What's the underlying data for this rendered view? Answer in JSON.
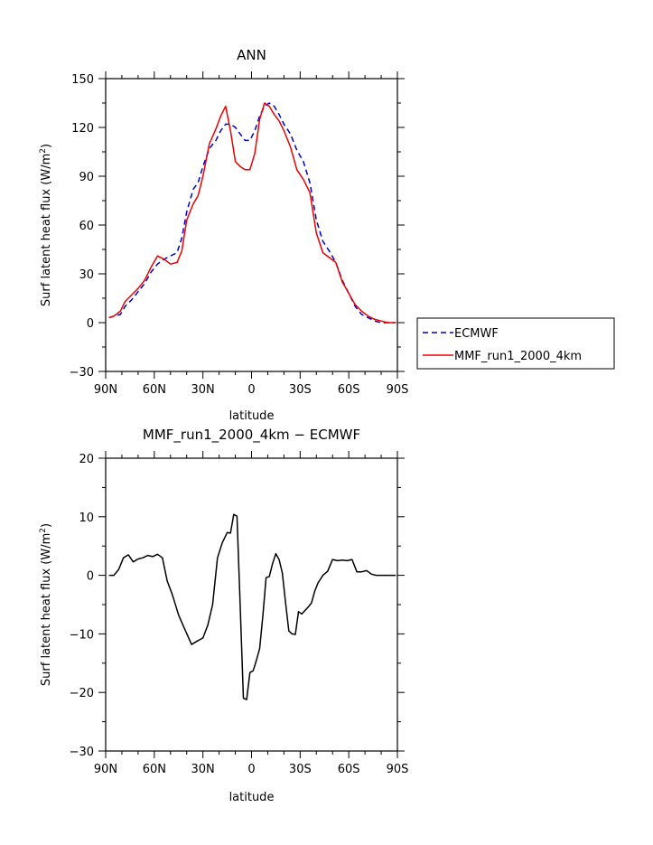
{
  "chart_data": [
    {
      "type": "line",
      "title": "ANN",
      "xlabel": "latitude",
      "ylabel": "Surf latent heat flux (W/m",
      "ylabel_superscript": "2",
      "ylabel_suffix": ")",
      "xlim": [
        90,
        -90
      ],
      "ylim": [
        -30,
        150
      ],
      "x_ticks": [
        90,
        60,
        30,
        0,
        -30,
        -60,
        -90
      ],
      "x_tick_labels": [
        "90N",
        "60N",
        "30N",
        "0",
        "30S",
        "60S",
        "90S"
      ],
      "y_ticks": [
        -30,
        0,
        30,
        60,
        90,
        120,
        150
      ],
      "y_tick_labels": [
        "−30",
        "0",
        "30",
        "60",
        "90",
        "120",
        "150"
      ],
      "legend": {
        "placement": "right-outside",
        "entries": [
          "ECMWF",
          "MMF_run1_2000_4km"
        ]
      },
      "series": [
        {
          "name": "ECMWF",
          "color": "#0000cc",
          "dash": "dashed",
          "x": [
            88,
            85,
            81,
            78,
            74,
            70,
            66,
            62,
            58,
            54,
            50,
            46,
            43,
            40,
            36,
            33,
            30,
            26,
            22,
            19,
            16,
            13,
            10,
            7,
            4,
            1,
            -2,
            -5,
            -8,
            -11,
            -14,
            -17,
            -20,
            -24,
            -28,
            -32,
            -36,
            -40,
            -44,
            -48,
            -52,
            -56,
            -60,
            -64,
            -68,
            -72,
            -76,
            -80,
            -84,
            -89
          ],
          "y": [
            3,
            4,
            5,
            10,
            14,
            19,
            24,
            31,
            36,
            39,
            41,
            43,
            52,
            68,
            82,
            86,
            96,
            107,
            112,
            118,
            122,
            122,
            120,
            116,
            112,
            112,
            118,
            127,
            133,
            135,
            133,
            128,
            122,
            116,
            106,
            99,
            86,
            63,
            50,
            44,
            37,
            26,
            18,
            10,
            5,
            3,
            1,
            0,
            0,
            0
          ]
        },
        {
          "name": "MMF_run1_2000_4km",
          "color": "#ee0000",
          "dash": "solid",
          "x": [
            88,
            85,
            81,
            78,
            74,
            70,
            66,
            62,
            58,
            54,
            50,
            46,
            43,
            40,
            36,
            33,
            30,
            26,
            22,
            19,
            16,
            13,
            10,
            7,
            4,
            1,
            -2,
            -5,
            -8,
            -11,
            -14,
            -17,
            -20,
            -24,
            -28,
            -32,
            -36,
            -40,
            -44,
            -48,
            -52,
            -56,
            -60,
            -64,
            -68,
            -72,
            -76,
            -80,
            -84,
            -89
          ],
          "y": [
            3,
            4,
            7,
            13,
            17,
            21,
            26,
            34,
            41,
            39,
            36,
            37,
            44,
            63,
            73,
            78,
            90,
            110,
            119,
            127,
            133,
            118,
            99,
            96,
            94,
            94,
            104,
            125,
            135,
            133,
            128,
            124,
            118,
            108,
            94,
            88,
            80,
            55,
            43,
            40,
            37,
            25,
            18,
            11,
            7,
            4,
            2,
            1,
            0,
            0
          ]
        }
      ]
    },
    {
      "type": "line",
      "title": "MMF_run1_2000_4km − ECMWF",
      "xlabel": "latitude",
      "ylabel": "Surf latent heat flux (W/m",
      "ylabel_superscript": "2",
      "ylabel_suffix": ")",
      "xlim": [
        90,
        -90
      ],
      "ylim": [
        -30,
        20
      ],
      "x_ticks": [
        90,
        60,
        30,
        0,
        -30,
        -60,
        -90
      ],
      "x_tick_labels": [
        "90N",
        "60N",
        "30N",
        "0",
        "30S",
        "60S",
        "90S"
      ],
      "y_ticks": [
        -30,
        -20,
        -10,
        0,
        10,
        20
      ],
      "y_tick_labels": [
        "−30",
        "−20",
        "−10",
        "0",
        "10",
        "20"
      ],
      "series": [
        {
          "name": "MMF_run1_2000_4km − ECMWF",
          "color": "#000000",
          "dash": "solid",
          "x": [
            88,
            85,
            82,
            79,
            76,
            73,
            70,
            67,
            64,
            61,
            58,
            55,
            52,
            49,
            45,
            41,
            37,
            34,
            30,
            27,
            24,
            21,
            18,
            15,
            13,
            11,
            9,
            7,
            5,
            3,
            1,
            -1,
            -3,
            -5,
            -7,
            -9,
            -11,
            -13,
            -15,
            -17,
            -19,
            -21,
            -23,
            -25,
            -27,
            -29,
            -31,
            -33,
            -35,
            -37,
            -39,
            -41,
            -44,
            -47,
            -50,
            -53,
            -56,
            -59,
            -62,
            -65,
            -68,
            -71,
            -74,
            -77,
            -80,
            -83,
            -86,
            -89
          ],
          "y": [
            0,
            0,
            1,
            3,
            3.5,
            2.3,
            2.8,
            3,
            3.4,
            3.2,
            3.6,
            3,
            -1,
            -3.2,
            -6.8,
            -9.3,
            -11.8,
            -11.3,
            -10.7,
            -8.5,
            -5,
            3,
            5.6,
            7.3,
            7.2,
            10.4,
            10.1,
            -5,
            -21,
            -21.2,
            -16.6,
            -16.3,
            -14.5,
            -12.5,
            -6.8,
            -0.4,
            -0.2,
            2,
            3.7,
            2.7,
            0.4,
            -4.7,
            -9.5,
            -10,
            -10.1,
            -6.2,
            -6.6,
            -6,
            -5.4,
            -4.7,
            -2.7,
            -1.3,
            0,
            0.7,
            2.7,
            2.5,
            2.6,
            2.5,
            2.7,
            0.6,
            0.6,
            0.8,
            0.2,
            0,
            0,
            0,
            0,
            0
          ]
        }
      ]
    }
  ]
}
